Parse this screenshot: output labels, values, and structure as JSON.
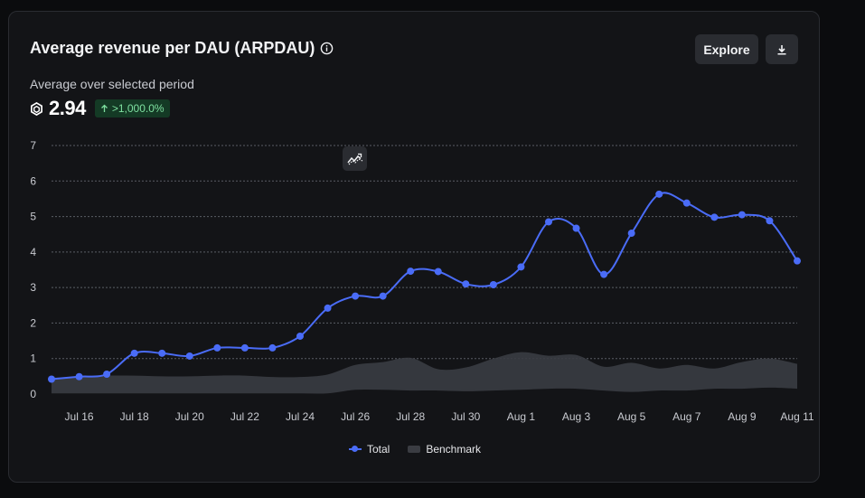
{
  "card": {
    "title": "Average revenue per DAU (ARPDAU)",
    "subtitle": "Average over selected period",
    "metric_value": "2.94",
    "change_badge": ">1,000.0%",
    "explore_label": "Explore"
  },
  "colors": {
    "total": "#4a6cf7",
    "benchmark": "#3a3c42",
    "badge_bg": "#143a25",
    "badge_text": "#7ee0a0"
  },
  "icons": {
    "info": "info-icon",
    "currency": "robux-icon",
    "download": "download-icon",
    "trend": "trend-icon",
    "arrow": "arrow-up-icon"
  },
  "chart_data": {
    "type": "line",
    "title": "",
    "xlabel": "",
    "ylabel": "",
    "ylim": [
      0,
      7
    ],
    "yticks": [
      0,
      1,
      2,
      3,
      4,
      5,
      6,
      7
    ],
    "x_tick_labels": [
      "Jul 16",
      "Jul 18",
      "Jul 20",
      "Jul 22",
      "Jul 24",
      "Jul 26",
      "Jul 28",
      "Jul 30",
      "Aug 1",
      "Aug 3",
      "Aug 5",
      "Aug 7",
      "Aug 9",
      "Aug 11"
    ],
    "x_tick_indices": [
      1,
      3,
      5,
      7,
      9,
      11,
      13,
      15,
      17,
      19,
      21,
      23,
      25,
      27
    ],
    "categories": [
      "Jul 15",
      "Jul 16",
      "Jul 17",
      "Jul 18",
      "Jul 19",
      "Jul 20",
      "Jul 21",
      "Jul 22",
      "Jul 23",
      "Jul 24",
      "Jul 25",
      "Jul 26",
      "Jul 27",
      "Jul 28",
      "Jul 29",
      "Jul 30",
      "Jul 31",
      "Aug 1",
      "Aug 2",
      "Aug 3",
      "Aug 4",
      "Aug 5",
      "Aug 6",
      "Aug 7",
      "Aug 8",
      "Aug 9",
      "Aug 10",
      "Aug 11"
    ],
    "series": [
      {
        "name": "Total",
        "type": "line",
        "values": [
          0.42,
          0.49,
          0.56,
          1.15,
          1.15,
          1.07,
          1.3,
          1.3,
          1.3,
          1.63,
          2.42,
          2.76,
          2.76,
          3.46,
          3.45,
          3.1,
          3.08,
          3.58,
          4.85,
          4.67,
          3.37,
          4.53,
          5.63,
          5.38,
          4.98,
          5.05,
          4.88,
          3.75
        ]
      },
      {
        "name": "Benchmark",
        "type": "area",
        "upper": [
          0.46,
          0.49,
          0.52,
          0.52,
          0.5,
          0.5,
          0.52,
          0.52,
          0.48,
          0.48,
          0.55,
          0.82,
          0.9,
          1.02,
          0.7,
          0.75,
          1.0,
          1.18,
          1.08,
          1.1,
          0.77,
          0.88,
          0.72,
          0.82,
          0.72,
          0.9,
          1.0,
          0.85
        ],
        "lower": [
          0.02,
          0.02,
          0.02,
          0.02,
          0.02,
          0.02,
          0.02,
          0.02,
          0.02,
          0.02,
          0.02,
          0.12,
          0.12,
          0.1,
          0.1,
          0.08,
          0.1,
          0.12,
          0.15,
          0.15,
          0.1,
          0.06,
          0.1,
          0.1,
          0.15,
          0.15,
          0.18,
          0.15
        ]
      }
    ],
    "legend": [
      "Total",
      "Benchmark"
    ],
    "legend_position": "bottom",
    "grid": true
  }
}
